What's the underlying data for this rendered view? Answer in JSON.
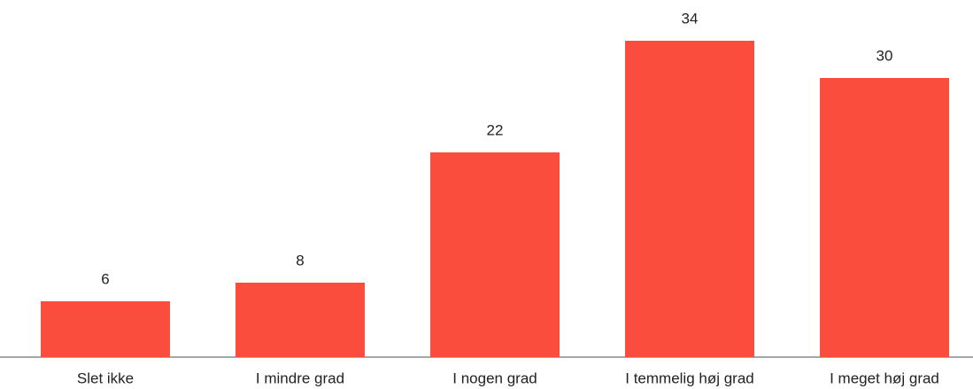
{
  "chart_data": {
    "type": "bar",
    "categories": [
      "Slet ikke",
      "I mindre grad",
      "I nogen grad",
      "I temmelig høj grad",
      "I meget høj grad"
    ],
    "values": [
      6,
      8,
      22,
      34,
      30
    ],
    "color": "#fa4d3d",
    "ylim": [
      0,
      38
    ]
  }
}
